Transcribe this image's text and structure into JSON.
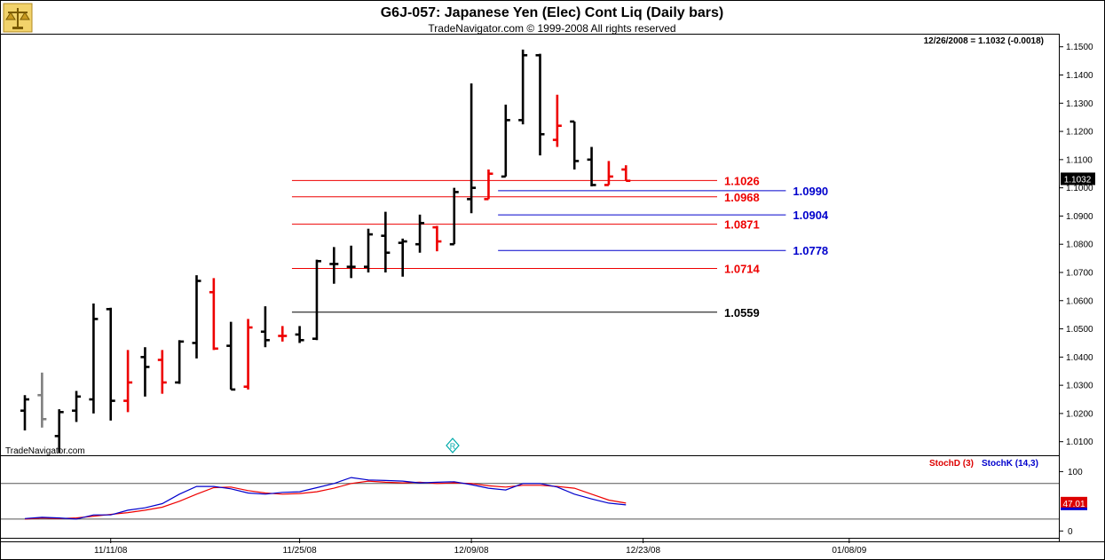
{
  "header": {
    "title": "G6J-057:  Japanese Yen (Elec) Cont Liq  (Daily bars)",
    "copyright": "TradeNavigator.com © 1999-2008 All rights reserved",
    "last_quote": "12/26/2008 = 1.1032 (-0.0018)",
    "watermark": "TradeNavigator.com",
    "logo_icon": "scales-logo-icon",
    "marker_glyph": "R"
  },
  "colors": {
    "up_bar": "#000000",
    "down_bar": "#ee0000",
    "neutral_bar": "#808080",
    "fib_red": "#ee0000",
    "fib_blue": "#0000cc",
    "stoch_d": "#dd0000",
    "stoch_k": "#0000cc",
    "marker": "#00aaaa"
  },
  "chart_data": [
    {
      "type": "ohlc",
      "title": "G6J-057:  Japanese Yen (Elec) Cont Liq  (Daily bars)",
      "ylim": [
        1.0055,
        1.154
      ],
      "y_ticks": [
        "1.1500",
        "1.1400",
        "1.1300",
        "1.1200",
        "1.1100",
        "1.1000",
        "1.0900",
        "1.0800",
        "1.0700",
        "1.0600",
        "1.0500",
        "1.0400",
        "1.0300",
        "1.0200",
        "1.0100"
      ],
      "x_ticks": [
        "11/11/08",
        "11/25/08",
        "12/09/08",
        "12/23/08",
        "01/08/09"
      ],
      "last_value_label": "1.1032",
      "bars": [
        {
          "date": "11/04/08",
          "o": 1.021,
          "h": 1.0265,
          "l": 1.014,
          "c": 1.025,
          "color": "black"
        },
        {
          "date": "11/05/08",
          "o": 1.0265,
          "h": 1.0345,
          "l": 1.015,
          "c": 1.018,
          "color": "gray"
        },
        {
          "date": "11/06/08",
          "o": 1.012,
          "h": 1.0215,
          "l": 1.006,
          "c": 1.0205,
          "color": "black"
        },
        {
          "date": "11/07/08",
          "o": 1.021,
          "h": 1.028,
          "l": 1.017,
          "c": 1.026,
          "color": "black"
        },
        {
          "date": "11/10/08",
          "o": 1.025,
          "h": 1.059,
          "l": 1.02,
          "c": 1.0535,
          "color": "black"
        },
        {
          "date": "11/11/08",
          "o": 1.057,
          "h": 1.0575,
          "l": 1.0175,
          "c": 1.0245,
          "color": "black"
        },
        {
          "date": "11/12/08",
          "o": 1.0245,
          "h": 1.0425,
          "l": 1.0205,
          "c": 1.031,
          "color": "red"
        },
        {
          "date": "11/13/08",
          "o": 1.04,
          "h": 1.0435,
          "l": 1.026,
          "c": 1.0365,
          "color": "black"
        },
        {
          "date": "11/14/08",
          "o": 1.039,
          "h": 1.0425,
          "l": 1.027,
          "c": 1.031,
          "color": "red"
        },
        {
          "date": "11/17/08",
          "o": 1.031,
          "h": 1.046,
          "l": 1.0305,
          "c": 1.0455,
          "color": "black"
        },
        {
          "date": "11/18/08",
          "o": 1.045,
          "h": 1.069,
          "l": 1.0395,
          "c": 1.067,
          "color": "black"
        },
        {
          "date": "11/19/08",
          "o": 1.063,
          "h": 1.068,
          "l": 1.0425,
          "c": 1.043,
          "color": "red"
        },
        {
          "date": "11/20/08",
          "o": 1.044,
          "h": 1.0525,
          "l": 1.0285,
          "c": 1.0285,
          "color": "black"
        },
        {
          "date": "11/21/08",
          "o": 1.0295,
          "h": 1.0535,
          "l": 1.0285,
          "c": 1.0505,
          "color": "red"
        },
        {
          "date": "11/24/08",
          "o": 1.049,
          "h": 1.058,
          "l": 1.0435,
          "c": 1.046,
          "color": "black"
        },
        {
          "date": "11/25/08",
          "o": 1.0475,
          "h": 1.051,
          "l": 1.0455,
          "c": 1.0475,
          "color": "red"
        },
        {
          "date": "11/26/08",
          "o": 1.048,
          "h": 1.051,
          "l": 1.045,
          "c": 1.046,
          "color": "black"
        },
        {
          "date": "11/28/08",
          "o": 1.0465,
          "h": 1.0745,
          "l": 1.046,
          "c": 1.074,
          "color": "black"
        },
        {
          "date": "12/01/08",
          "o": 1.073,
          "h": 1.079,
          "l": 1.066,
          "c": 1.073,
          "color": "black"
        },
        {
          "date": "12/02/08",
          "o": 1.072,
          "h": 1.0795,
          "l": 1.068,
          "c": 1.072,
          "color": "black"
        },
        {
          "date": "12/03/08",
          "o": 1.072,
          "h": 1.0855,
          "l": 1.07,
          "c": 1.0835,
          "color": "black"
        },
        {
          "date": "12/04/08",
          "o": 1.083,
          "h": 1.0915,
          "l": 1.07,
          "c": 1.077,
          "color": "black"
        },
        {
          "date": "12/05/08",
          "o": 1.0805,
          "h": 1.082,
          "l": 1.0685,
          "c": 1.081,
          "color": "black"
        },
        {
          "date": "12/08/08",
          "o": 1.08,
          "h": 1.0905,
          "l": 1.077,
          "c": 1.0875,
          "color": "black"
        },
        {
          "date": "12/09/08",
          "o": 1.086,
          "h": 1.0865,
          "l": 1.0775,
          "c": 1.081,
          "color": "red"
        },
        {
          "date": "12/10/08",
          "o": 1.08,
          "h": 1.1,
          "l": 1.08,
          "c": 1.0985,
          "color": "black"
        },
        {
          "date": "12/11/08",
          "o": 1.096,
          "h": 1.137,
          "l": 1.091,
          "c": 1.1,
          "color": "black"
        },
        {
          "date": "12/12/08",
          "o": 1.096,
          "h": 1.1065,
          "l": 1.096,
          "c": 1.105,
          "color": "red"
        },
        {
          "date": "12/15/08",
          "o": 1.104,
          "h": 1.1295,
          "l": 1.104,
          "c": 1.124,
          "color": "black"
        },
        {
          "date": "12/16/08",
          "o": 1.124,
          "h": 1.149,
          "l": 1.1225,
          "c": 1.147,
          "color": "black"
        },
        {
          "date": "12/17/08",
          "o": 1.147,
          "h": 1.1475,
          "l": 1.1115,
          "c": 1.119,
          "color": "black"
        },
        {
          "date": "12/18/08",
          "o": 1.117,
          "h": 1.133,
          "l": 1.1145,
          "c": 1.122,
          "color": "red"
        },
        {
          "date": "12/19/08",
          "o": 1.1235,
          "h": 1.1235,
          "l": 1.1065,
          "c": 1.1095,
          "color": "black"
        },
        {
          "date": "12/22/08",
          "o": 1.11,
          "h": 1.1145,
          "l": 1.1005,
          "c": 1.101,
          "color": "black"
        },
        {
          "date": "12/23/08",
          "o": 1.101,
          "h": 1.1095,
          "l": 1.101,
          "c": 1.104,
          "color": "red"
        },
        {
          "date": "12/24/08",
          "o": 1.1065,
          "h": 1.108,
          "l": 1.1025,
          "c": 1.1025,
          "color": "red"
        }
      ],
      "levels": [
        {
          "value": 1.1026,
          "label": "1.1026",
          "color": "red",
          "start_bar": 17,
          "end_bar": 40
        },
        {
          "value": 1.0968,
          "label": "1.0968",
          "color": "red",
          "start_bar": 17,
          "end_bar": 40
        },
        {
          "value": 1.0871,
          "label": "1.0871",
          "color": "red",
          "start_bar": 17,
          "end_bar": 40
        },
        {
          "value": 1.0714,
          "label": "1.0714",
          "color": "red",
          "start_bar": 17,
          "end_bar": 40
        },
        {
          "value": 1.0559,
          "label": "1.0559",
          "color": "black",
          "start_bar": 17,
          "end_bar": 40
        },
        {
          "value": 1.099,
          "label": "1.0990",
          "color": "blue",
          "start_bar": 29,
          "end_bar": 44
        },
        {
          "value": 1.0904,
          "label": "1.0904",
          "color": "blue",
          "start_bar": 29,
          "end_bar": 44
        },
        {
          "value": 1.0778,
          "label": "1.0778",
          "color": "blue",
          "start_bar": 29,
          "end_bar": 44
        }
      ]
    },
    {
      "type": "line",
      "title": "StochD (3)  StochK (14,3)",
      "ylim": [
        -10,
        120
      ],
      "y_ticks": [
        "100",
        "0"
      ],
      "ref_lines": [
        80,
        20
      ],
      "last_value_label": "47.01",
      "series": [
        {
          "name": "StochD (3)",
          "color": "red",
          "values": [
            20,
            22,
            21,
            22,
            25,
            28,
            31,
            35,
            40,
            50,
            62,
            73,
            74,
            68,
            64,
            62,
            63,
            66,
            72,
            80,
            84,
            82,
            81,
            82,
            80,
            81,
            80,
            76,
            74,
            77,
            77,
            75,
            72,
            62,
            52,
            47
          ]
        },
        {
          "name": "StochK (14,3)",
          "color": "blue",
          "values": [
            21,
            23,
            22,
            20,
            27,
            27,
            35,
            39,
            46,
            62,
            75,
            75,
            71,
            64,
            62,
            65,
            66,
            73,
            80,
            90,
            86,
            85,
            84,
            81,
            82,
            83,
            78,
            72,
            69,
            80,
            80,
            74,
            62,
            54,
            47,
            44
          ]
        }
      ]
    }
  ]
}
